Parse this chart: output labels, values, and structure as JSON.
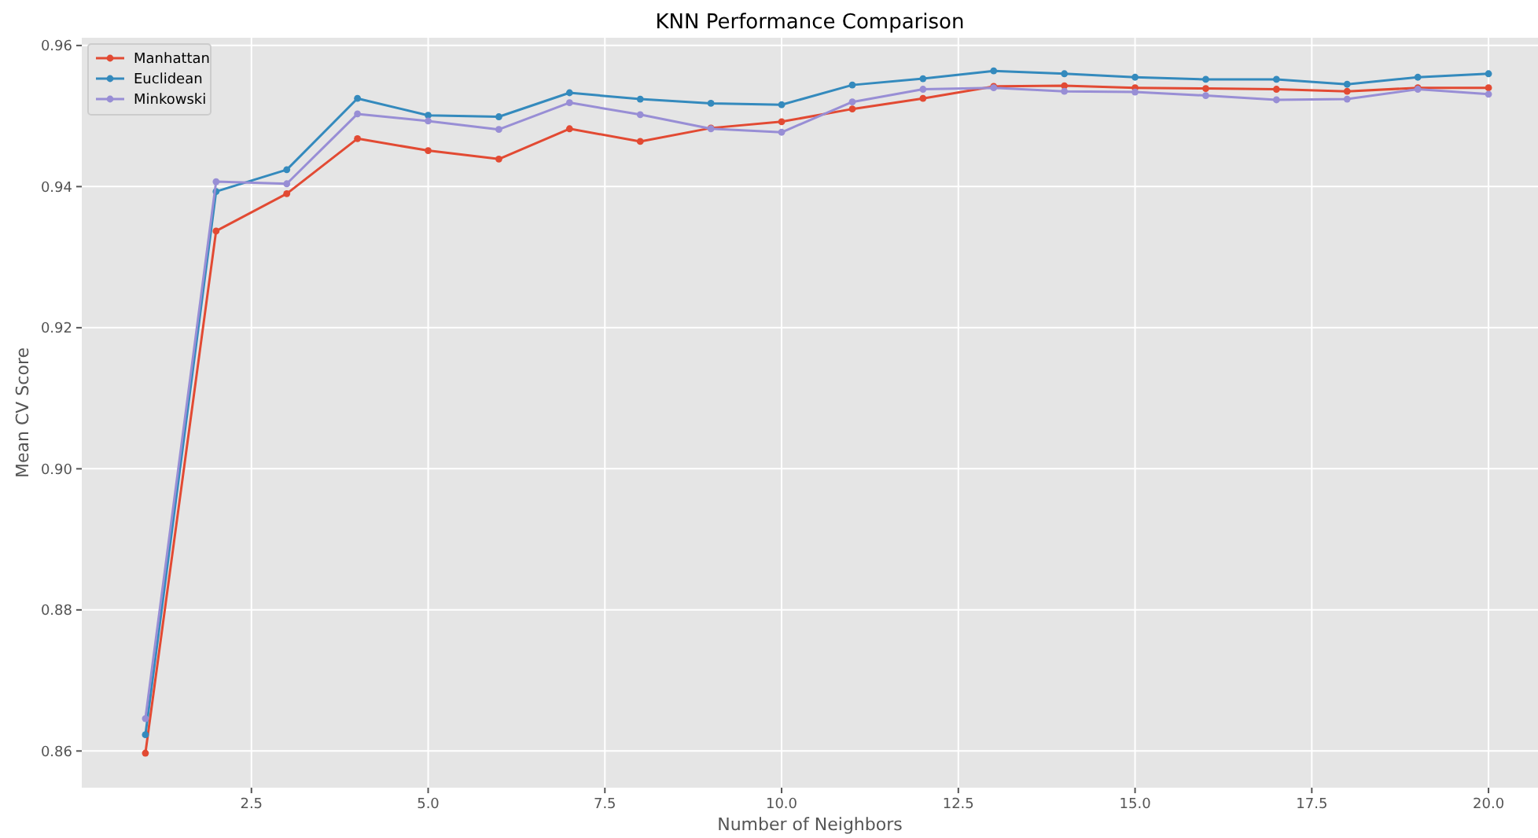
{
  "chart_data": {
    "type": "line",
    "title": "KNN Performance Comparison",
    "xlabel": "Number of Neighbors",
    "ylabel": "Mean CV Score",
    "x": [
      1,
      2,
      3,
      4,
      5,
      6,
      7,
      8,
      9,
      10,
      11,
      12,
      13,
      14,
      15,
      16,
      17,
      18,
      19,
      20
    ],
    "series": [
      {
        "name": "Manhattan",
        "color": "#e24a33",
        "values": [
          0.8597,
          0.9337,
          0.939,
          0.9468,
          0.9451,
          0.9439,
          0.9482,
          0.9464,
          0.9483,
          0.9492,
          0.951,
          0.9525,
          0.9542,
          0.9543,
          0.954,
          0.9539,
          0.9538,
          0.9535,
          0.954,
          0.954
        ]
      },
      {
        "name": "Euclidean",
        "color": "#348abd",
        "values": [
          0.8623,
          0.9393,
          0.9424,
          0.9525,
          0.9501,
          0.9499,
          0.9533,
          0.9524,
          0.9518,
          0.9516,
          0.9544,
          0.9553,
          0.9564,
          0.956,
          0.9555,
          0.9552,
          0.9552,
          0.9545,
          0.9555,
          0.956
        ]
      },
      {
        "name": "Minkowski",
        "color": "#988ed5",
        "values": [
          0.8646,
          0.9407,
          0.9404,
          0.9503,
          0.9493,
          0.9481,
          0.9519,
          0.9502,
          0.9482,
          0.9477,
          0.952,
          0.9538,
          0.954,
          0.9535,
          0.9534,
          0.9529,
          0.9523,
          0.9524,
          0.9538,
          0.9531
        ]
      }
    ],
    "xlim": [
      0.1,
      20.7
    ],
    "ylim": [
      0.8548,
      0.9611
    ],
    "xticks": [
      2.5,
      {
        "value": 5,
        "label": "5.0"
      },
      7.5,
      {
        "value": 10,
        "label": "10.0"
      },
      12.5,
      {
        "value": 15,
        "label": "15.0"
      },
      17.5,
      {
        "value": 20,
        "label": "20.0"
      }
    ],
    "yticks": [
      0.86,
      0.88,
      {
        "value": 0.9,
        "label": "0.90"
      },
      0.92,
      0.94,
      0.96
    ],
    "grid": true,
    "legend": "top left",
    "marker": "circle",
    "line_style": "solid"
  }
}
